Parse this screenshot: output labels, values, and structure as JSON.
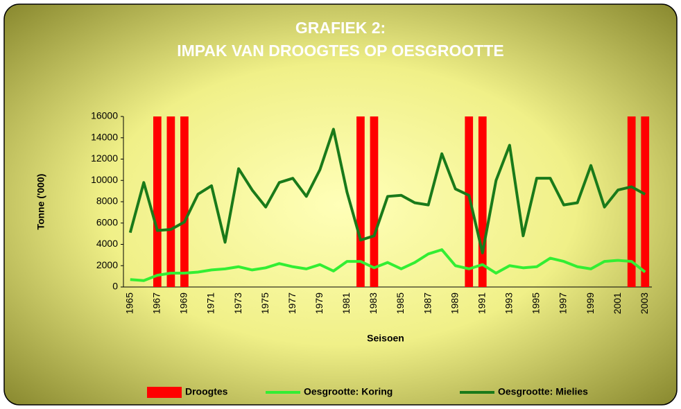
{
  "chart_data": {
    "type": "combo",
    "title": [
      "GRAFIEK 2:",
      "IMPAK VAN DROOGTES OP OESGROOTTE"
    ],
    "xlabel": "Seisoen",
    "ylabel": "Tonne ('000)",
    "categories": [
      "1965",
      null,
      "1967",
      null,
      "1969",
      null,
      "1971",
      null,
      "1973",
      null,
      "1975",
      null,
      "1977",
      null,
      "1979",
      null,
      "1981",
      null,
      "1983",
      null,
      "1985",
      null,
      "1987",
      null,
      "1989",
      null,
      "1991",
      null,
      "1993",
      null,
      "1995",
      null,
      "1997",
      null,
      "1999",
      null,
      "2001",
      null,
      "2003"
    ],
    "series": [
      {
        "name": "Droogtes",
        "type": "bar",
        "color": "#ff0000",
        "values": [
          0,
          0,
          16000,
          16000,
          16000,
          0,
          0,
          0,
          0,
          0,
          0,
          0,
          0,
          0,
          0,
          0,
          0,
          16000,
          16000,
          0,
          0,
          0,
          0,
          0,
          0,
          16000,
          16000,
          0,
          0,
          0,
          0,
          0,
          0,
          0,
          0,
          0,
          0,
          16000,
          16000
        ]
      },
      {
        "name": "Oesgrootte: Koring",
        "type": "line",
        "color": "#33ee33",
        "values": [
          700,
          600,
          1100,
          1300,
          1300,
          1400,
          1600,
          1700,
          1900,
          1600,
          1800,
          2200,
          1900,
          1700,
          2100,
          1500,
          2400,
          2400,
          1800,
          2300,
          1700,
          2300,
          3100,
          3500,
          2000,
          1700,
          2100,
          1300,
          2000,
          1800,
          1900,
          2700,
          2400,
          1900,
          1700,
          2400,
          2500,
          2400,
          1400
        ]
      },
      {
        "name": "Oesgrootte: Mielies",
        "type": "line",
        "color": "#1a7a1a",
        "values": [
          5100,
          9800,
          5300,
          5400,
          6100,
          8700,
          9500,
          4200,
          11100,
          9100,
          7500,
          9800,
          10200,
          8500,
          11000,
          14800,
          8900,
          4400,
          4800,
          8500,
          8600,
          7900,
          7700,
          12500,
          9200,
          8600,
          3200,
          10000,
          13300,
          4800,
          10200,
          10200,
          7700,
          7900,
          11400,
          7500,
          9100,
          9400,
          8700
        ]
      }
    ],
    "ylim": [
      0,
      16000
    ],
    "yticks": [
      0,
      2000,
      4000,
      6000,
      8000,
      10000,
      12000,
      14000,
      16000
    ],
    "legend": "bottom"
  }
}
